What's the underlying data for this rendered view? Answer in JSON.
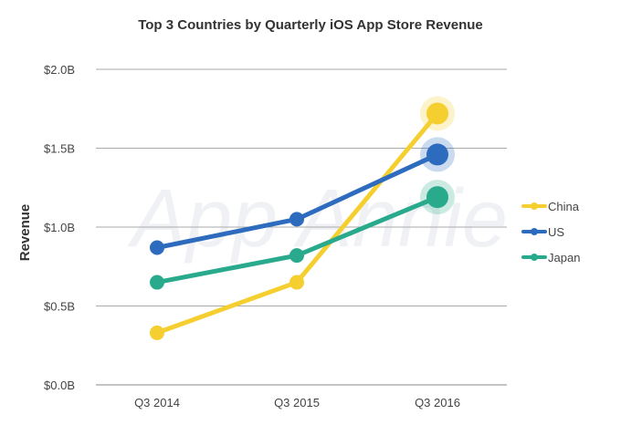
{
  "chart_data": {
    "type": "line",
    "title": "Top 3 Countries by Quarterly iOS App Store Revenue",
    "xlabel": "",
    "ylabel": "Revenue",
    "categories": [
      "Q3 2014",
      "Q3 2015",
      "Q3 2016"
    ],
    "yticks": [
      "$0.0B",
      "$0.5B",
      "$1.0B",
      "$1.5B",
      "$2.0B"
    ],
    "ylim": [
      0,
      2.0
    ],
    "grid": true,
    "legend_position": "right",
    "watermark": "App Annie",
    "series": [
      {
        "name": "China",
        "color": "#F5CF2F",
        "values": [
          0.33,
          0.65,
          1.72
        ]
      },
      {
        "name": "US",
        "color": "#2D6BBF",
        "values": [
          0.87,
          1.05,
          1.46
        ]
      },
      {
        "name": "Japan",
        "color": "#2AAA8C",
        "values": [
          0.65,
          0.82,
          1.19
        ]
      }
    ]
  }
}
